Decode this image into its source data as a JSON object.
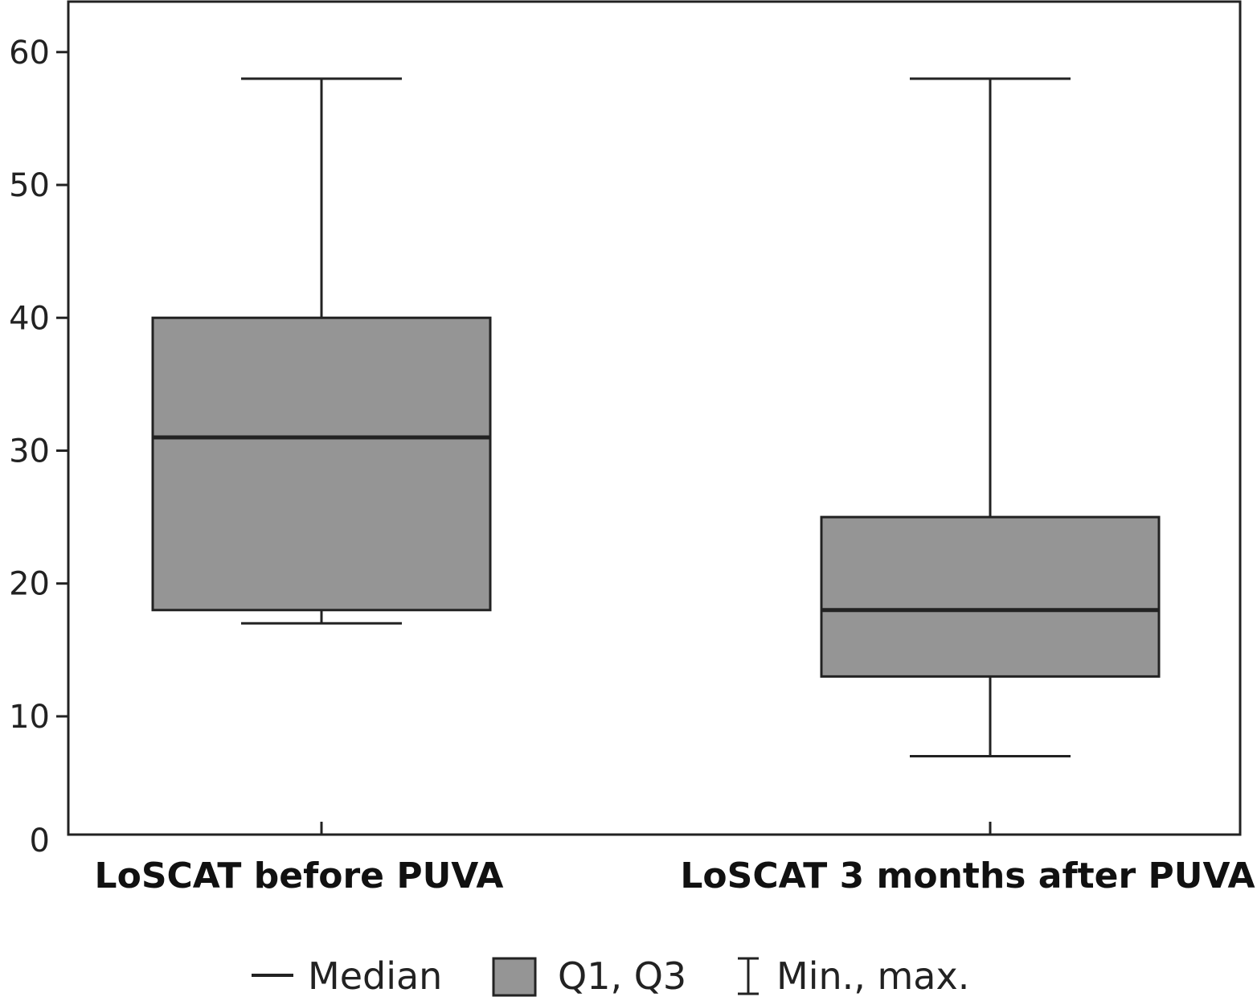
{
  "chart_data": {
    "type": "boxplot",
    "categories": [
      "LoSCAT before PUVA",
      "LoSCAT 3 months after PUVA"
    ],
    "boxes": [
      {
        "min": 17,
        "q1": 18,
        "median": 31,
        "q3": 40,
        "max": 58
      },
      {
        "min": 7,
        "q1": 13,
        "median": 18,
        "q3": 25,
        "max": 58
      }
    ],
    "yticks": [
      0,
      10,
      20,
      30,
      40,
      50,
      60
    ],
    "ylim": [
      1.1,
      63.8
    ],
    "grid": false,
    "legend": {
      "placement": "bottom",
      "items": [
        "Median",
        "Q1, Q3",
        "Min., max."
      ]
    },
    "colors": {
      "box_fill": "#959595",
      "stroke": "#222222"
    }
  }
}
